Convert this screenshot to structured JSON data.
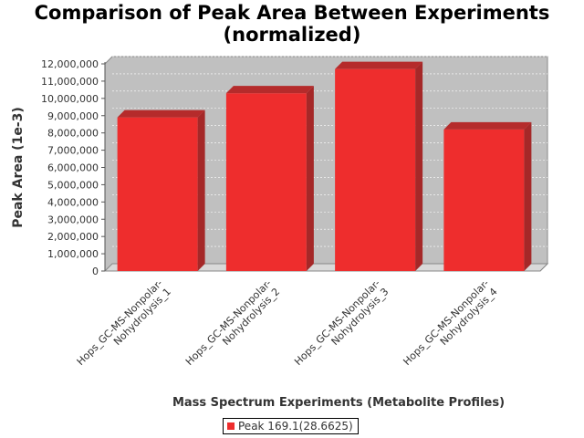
{
  "chart_data": {
    "type": "bar",
    "title_line1": "Comparison of Peak Area Between Experiments",
    "title_line2": "(normalized)",
    "xlabel": "Mass Spectrum Experiments (Metabolite Profiles)",
    "ylabel": "Peak Area (1e-3)",
    "categories": [
      [
        "Hops_GC-MS-Nonpolar-",
        "Nohydrolysis_1"
      ],
      [
        "Hops_GC-MS-Nonpolar-",
        "Nohydrolysis_2"
      ],
      [
        "Hops_GC-MS-Nonpolar-",
        "Nohydrolysis_3"
      ],
      [
        "Hops_GC-MS-Nonpolar-",
        "Nohydrolysis_4"
      ]
    ],
    "series": [
      {
        "name": "Peak 169.1(28.6625)",
        "values": [
          8900000,
          10300000,
          11700000,
          8200000
        ],
        "color": "#ee2d2d"
      }
    ],
    "ylim": [
      0,
      12000000
    ],
    "yticks": [
      0,
      1000000,
      2000000,
      3000000,
      4000000,
      5000000,
      6000000,
      7000000,
      8000000,
      9000000,
      10000000,
      11000000,
      12000000
    ],
    "ytick_labels": [
      "0",
      "1,000,000",
      "2,000,000",
      "3,000,000",
      "4,000,000",
      "5,000,000",
      "6,000,000",
      "7,000,000",
      "8,000,000",
      "9,000,000",
      "10,000,000",
      "11,000,000",
      "12,000,000"
    ],
    "grid": true,
    "legend_position": "bottom-center",
    "plot_background": "#c0c0c0"
  }
}
